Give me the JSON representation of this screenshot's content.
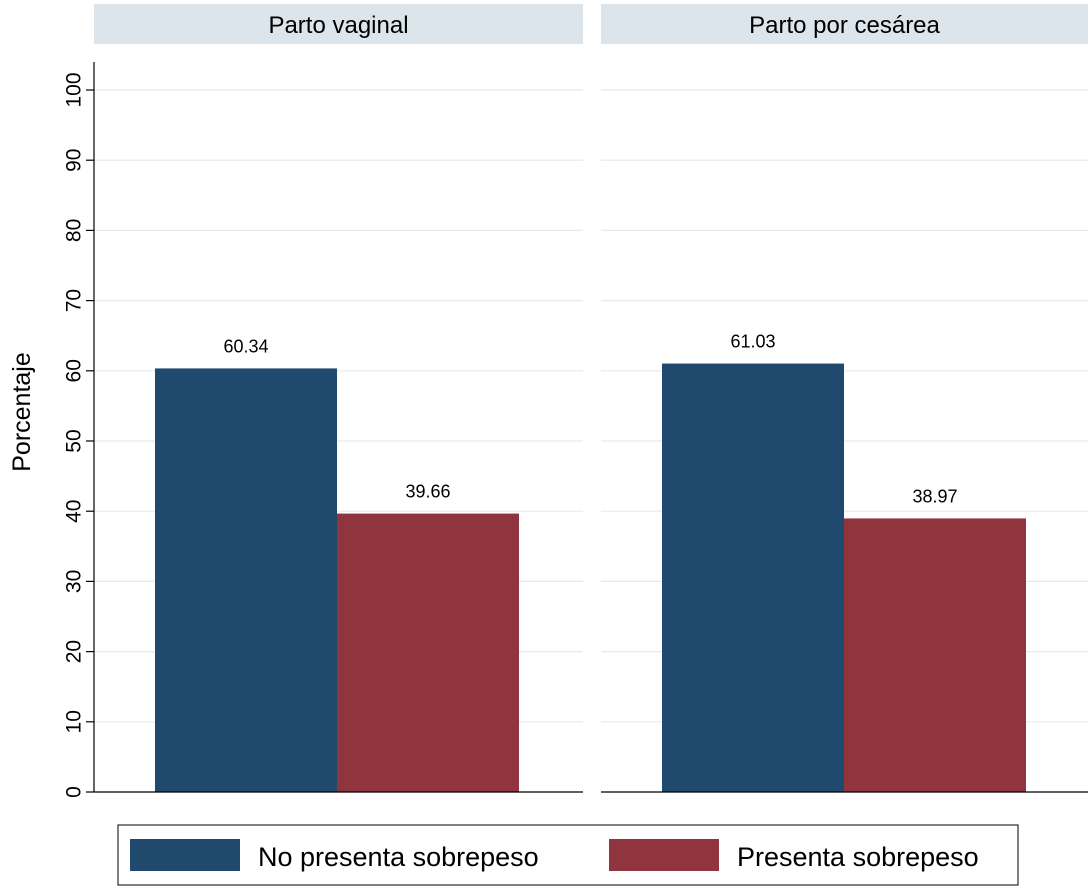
{
  "chart_data": {
    "type": "bar",
    "ylabel": "Porcentaje",
    "ylim": [
      0,
      100
    ],
    "yticks": [
      0,
      10,
      20,
      30,
      40,
      50,
      60,
      70,
      80,
      90,
      100
    ],
    "grid": true,
    "legend_position": "bottom",
    "panels": [
      {
        "title": "Parto vaginal",
        "series": [
          {
            "name": "No presenta sobrepeso",
            "value": 60.34,
            "label": "60.34"
          },
          {
            "name": "Presenta sobrepeso",
            "value": 39.66,
            "label": "39.66"
          }
        ]
      },
      {
        "title": "Parto por cesárea",
        "series": [
          {
            "name": "No presenta sobrepeso",
            "value": 61.03,
            "label": "61.03"
          },
          {
            "name": "Presenta sobrepeso",
            "value": 38.97,
            "label": "38.97"
          }
        ]
      }
    ],
    "legend": [
      {
        "name": "No presenta sobrepeso",
        "color": "#1f4a6e"
      },
      {
        "name": "Presenta sobrepeso",
        "color": "#90353e"
      }
    ],
    "colors": {
      "series": [
        "#1f4a6e",
        "#90353e"
      ],
      "panel_header": "#dbe5eb",
      "grid": "#e5eaee"
    }
  }
}
